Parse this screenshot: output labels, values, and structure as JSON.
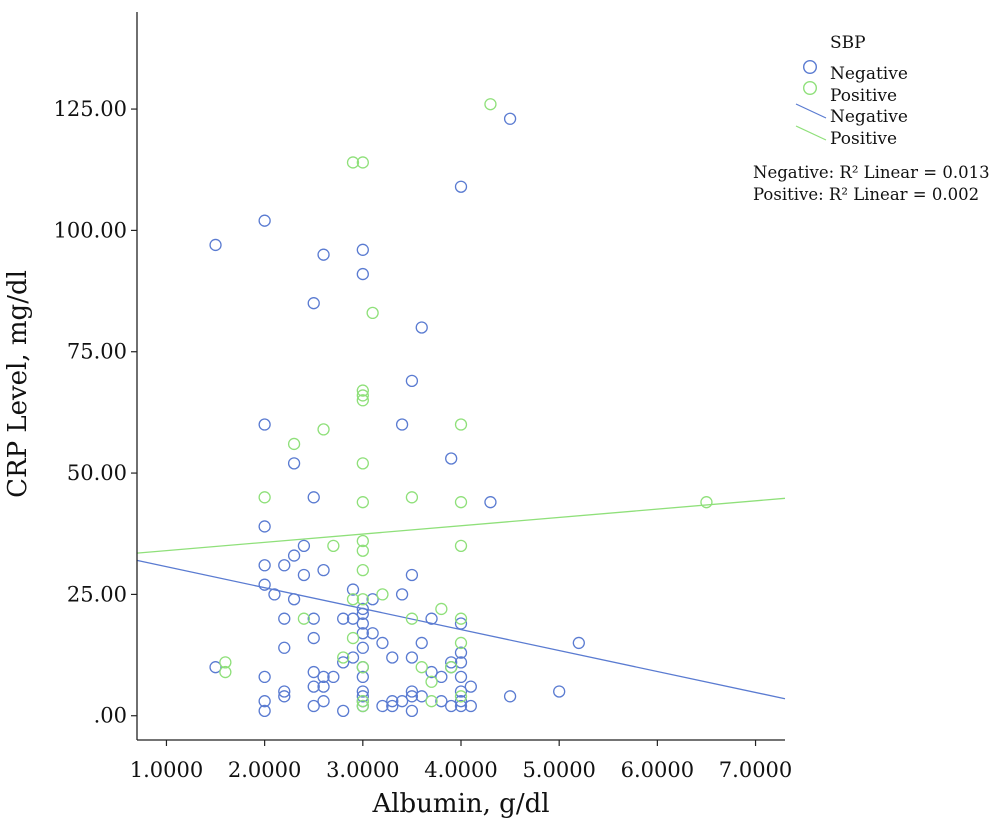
{
  "chart_data": {
    "type": "scatter",
    "xlabel": "Albumin, g/dl",
    "ylabel": "CRP Level, mg/dl",
    "xlim": [
      0.7,
      7.3
    ],
    "ylim": [
      -5,
      145
    ],
    "x_ticks": [
      1,
      2,
      3,
      4,
      5,
      6,
      7
    ],
    "x_tick_labels": [
      "1.0000",
      "2.0000",
      "3.0000",
      "4.0000",
      "5.0000",
      "6.0000",
      "7.0000"
    ],
    "y_ticks": [
      0,
      25,
      50,
      75,
      100,
      125
    ],
    "y_tick_labels": [
      ".00",
      "25.00",
      "50.00",
      "75.00",
      "100.00",
      "125.00"
    ],
    "grid": false,
    "legend": {
      "title": "SBP",
      "placement": "top-right",
      "marker_entries": [
        "Negative",
        "Positive"
      ],
      "line_entries": [
        "Negative",
        "Positive"
      ]
    },
    "r2_labels": [
      "Negative: R² Linear = 0.013",
      "Positive: R² Linear = 0.002"
    ],
    "series": [
      {
        "name": "Negative",
        "color": "#5a7bd1",
        "points": [
          [
            1.5,
            10
          ],
          [
            1.5,
            97
          ],
          [
            2.0,
            102
          ],
          [
            2.0,
            60
          ],
          [
            2.0,
            39
          ],
          [
            2.0,
            31
          ],
          [
            2.0,
            27
          ],
          [
            2.0,
            8
          ],
          [
            2.0,
            3
          ],
          [
            2.0,
            1
          ],
          [
            2.1,
            25
          ],
          [
            2.2,
            31
          ],
          [
            2.2,
            20
          ],
          [
            2.2,
            14
          ],
          [
            2.2,
            5
          ],
          [
            2.2,
            4
          ],
          [
            2.3,
            33
          ],
          [
            2.3,
            52
          ],
          [
            2.3,
            24
          ],
          [
            2.4,
            35
          ],
          [
            2.4,
            29
          ],
          [
            2.5,
            85
          ],
          [
            2.5,
            45
          ],
          [
            2.5,
            20
          ],
          [
            2.5,
            16
          ],
          [
            2.5,
            9
          ],
          [
            2.5,
            6
          ],
          [
            2.5,
            2
          ],
          [
            2.6,
            95
          ],
          [
            2.6,
            30
          ],
          [
            2.6,
            8
          ],
          [
            2.6,
            6
          ],
          [
            2.6,
            3
          ],
          [
            2.7,
            8
          ],
          [
            2.8,
            20
          ],
          [
            2.8,
            11
          ],
          [
            2.8,
            1
          ],
          [
            2.9,
            26
          ],
          [
            2.9,
            20
          ],
          [
            2.9,
            12
          ],
          [
            3.0,
            96
          ],
          [
            3.0,
            91
          ],
          [
            3.0,
            22
          ],
          [
            3.0,
            21
          ],
          [
            3.0,
            19
          ],
          [
            3.0,
            17
          ],
          [
            3.0,
            14
          ],
          [
            3.0,
            10
          ],
          [
            3.0,
            8
          ],
          [
            3.0,
            5
          ],
          [
            3.0,
            4
          ],
          [
            3.0,
            3
          ],
          [
            3.0,
            2
          ],
          [
            3.1,
            24
          ],
          [
            3.1,
            17
          ],
          [
            3.2,
            15
          ],
          [
            3.2,
            2
          ],
          [
            3.3,
            12
          ],
          [
            3.3,
            3
          ],
          [
            3.3,
            2
          ],
          [
            3.4,
            60
          ],
          [
            3.4,
            25
          ],
          [
            3.4,
            3
          ],
          [
            3.5,
            69
          ],
          [
            3.5,
            29
          ],
          [
            3.5,
            12
          ],
          [
            3.5,
            5
          ],
          [
            3.5,
            4
          ],
          [
            3.5,
            1
          ],
          [
            3.6,
            80
          ],
          [
            3.6,
            15
          ],
          [
            3.6,
            4
          ],
          [
            3.7,
            9
          ],
          [
            3.7,
            20
          ],
          [
            3.8,
            8
          ],
          [
            3.8,
            3
          ],
          [
            3.9,
            53
          ],
          [
            3.9,
            11
          ],
          [
            3.9,
            10
          ],
          [
            3.9,
            2
          ],
          [
            4.0,
            109
          ],
          [
            4.0,
            19
          ],
          [
            4.0,
            13
          ],
          [
            4.0,
            11
          ],
          [
            4.0,
            8
          ],
          [
            4.0,
            5
          ],
          [
            4.0,
            3
          ],
          [
            4.0,
            2
          ],
          [
            4.1,
            6
          ],
          [
            4.1,
            2
          ],
          [
            4.3,
            44
          ],
          [
            4.5,
            123
          ],
          [
            4.5,
            4
          ],
          [
            5.0,
            5
          ],
          [
            5.2,
            15
          ]
        ]
      },
      {
        "name": "Positive",
        "color": "#8fe07a",
        "points": [
          [
            1.6,
            11
          ],
          [
            1.6,
            9
          ],
          [
            2.0,
            45
          ],
          [
            2.3,
            56
          ],
          [
            2.4,
            20
          ],
          [
            2.6,
            59
          ],
          [
            2.7,
            35
          ],
          [
            2.8,
            12
          ],
          [
            2.9,
            114
          ],
          [
            2.9,
            24
          ],
          [
            2.9,
            16
          ],
          [
            3.0,
            114
          ],
          [
            3.0,
            67
          ],
          [
            3.0,
            66
          ],
          [
            3.0,
            65
          ],
          [
            3.0,
            52
          ],
          [
            3.0,
            44
          ],
          [
            3.0,
            36
          ],
          [
            3.0,
            34
          ],
          [
            3.0,
            30
          ],
          [
            3.0,
            24
          ],
          [
            3.0,
            10
          ],
          [
            3.0,
            3
          ],
          [
            3.0,
            2
          ],
          [
            3.1,
            83
          ],
          [
            3.2,
            25
          ],
          [
            3.5,
            45
          ],
          [
            3.5,
            20
          ],
          [
            3.6,
            10
          ],
          [
            3.7,
            7
          ],
          [
            3.7,
            3
          ],
          [
            3.8,
            22
          ],
          [
            3.9,
            10
          ],
          [
            4.0,
            60
          ],
          [
            4.0,
            44
          ],
          [
            4.0,
            35
          ],
          [
            4.0,
            20
          ],
          [
            4.0,
            15
          ],
          [
            4.0,
            4
          ],
          [
            4.3,
            126
          ],
          [
            6.5,
            44
          ]
        ]
      }
    ],
    "fit_lines": [
      {
        "name": "Negative",
        "color": "#5a7bd1",
        "x": [
          0.7,
          7.3
        ],
        "y": [
          32,
          3.5
        ]
      },
      {
        "name": "Positive",
        "color": "#8fe07a",
        "x": [
          0.7,
          7.3
        ],
        "y": [
          33.5,
          44.8
        ]
      }
    ]
  }
}
